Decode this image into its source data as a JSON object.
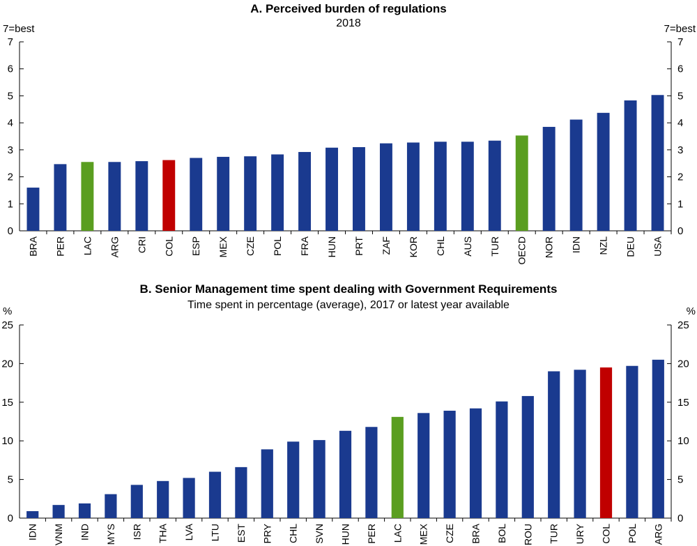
{
  "chart_data": [
    {
      "type": "bar",
      "title": "A. Perceived burden of regulations",
      "subtitle": "2018",
      "y_unit_left": "7=best",
      "y_unit_right": "7=best",
      "ylim": [
        0,
        7
      ],
      "yticks": [
        0,
        1,
        2,
        3,
        4,
        5,
        6,
        7
      ],
      "grid": false,
      "colors": {
        "default": "#1a3a8f",
        "LAC": "#5a9e20",
        "OECD": "#5a9e20",
        "COL": "#c00000"
      },
      "categories": [
        "BRA",
        "PER",
        "LAC",
        "ARG",
        "CRI",
        "COL",
        "ESP",
        "MEX",
        "CZE",
        "POL",
        "FRA",
        "HUN",
        "PRT",
        "ZAF",
        "KOR",
        "CHL",
        "AUS",
        "TUR",
        "OECD",
        "NOR",
        "IDN",
        "NZL",
        "DEU",
        "USA"
      ],
      "values": [
        1.6,
        2.47,
        2.55,
        2.55,
        2.58,
        2.62,
        2.7,
        2.74,
        2.76,
        2.83,
        2.92,
        3.08,
        3.1,
        3.24,
        3.27,
        3.3,
        3.3,
        3.34,
        3.53,
        3.85,
        4.12,
        4.37,
        4.83,
        5.03
      ]
    },
    {
      "type": "bar",
      "title": "B. Senior Management time spent dealing with Government Requirements",
      "subtitle": "Time spent in percentage (average), 2017 or latest year available",
      "y_unit_left": "%",
      "y_unit_right": "%",
      "ylim": [
        0,
        25
      ],
      "yticks": [
        0,
        5,
        10,
        15,
        20,
        25
      ],
      "grid": false,
      "colors": {
        "default": "#1a3a8f",
        "LAC": "#5a9e20",
        "COL": "#c00000"
      },
      "categories": [
        "IDN",
        "VNM",
        "IND",
        "MYS",
        "ISR",
        "THA",
        "LVA",
        "LTU",
        "EST",
        "PRY",
        "CHL",
        "SVN",
        "HUN",
        "PER",
        "LAC",
        "MEX",
        "CZE",
        "BRA",
        "BOL",
        "ROU",
        "TUR",
        "URY",
        "COL",
        "POL",
        "ARG"
      ],
      "values": [
        0.9,
        1.7,
        1.9,
        3.1,
        4.3,
        4.8,
        5.2,
        6.0,
        6.6,
        8.9,
        9.9,
        10.1,
        11.3,
        11.8,
        13.1,
        13.6,
        13.9,
        14.2,
        15.1,
        15.8,
        19.0,
        19.2,
        19.5,
        19.7,
        20.5
      ]
    }
  ]
}
